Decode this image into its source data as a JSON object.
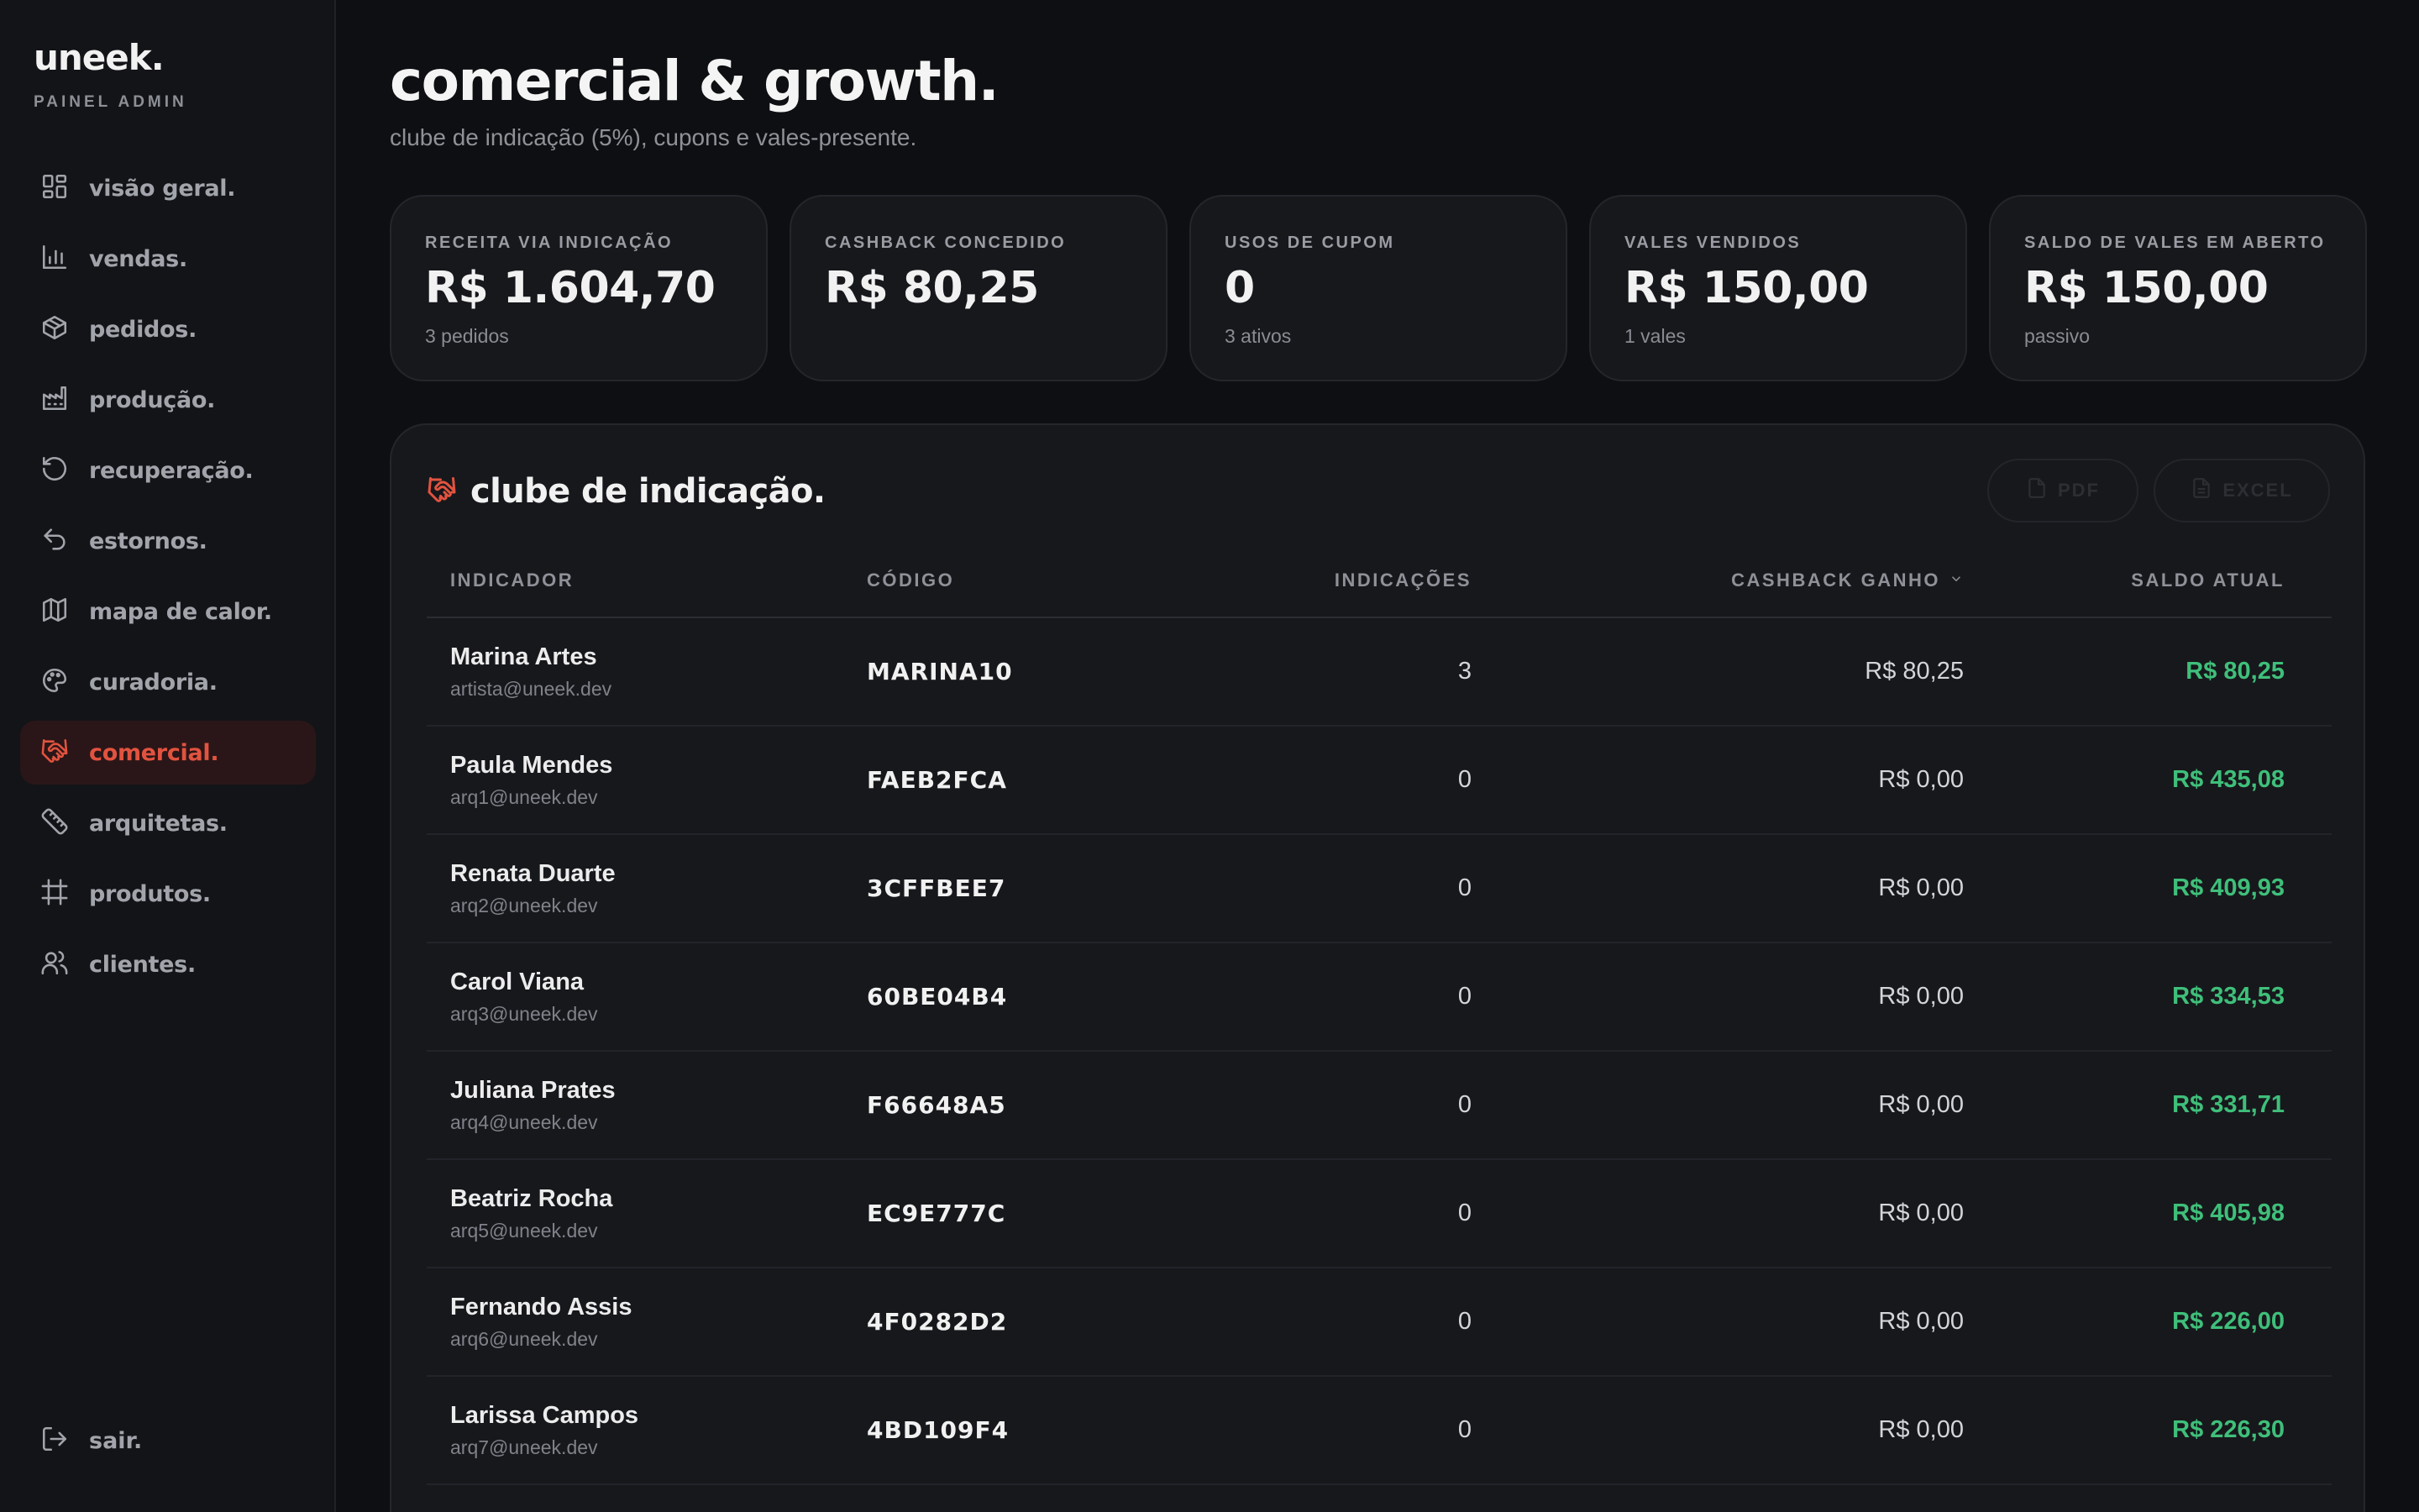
{
  "sidebar": {
    "logo": "uneek.",
    "subtitle": "PAINEL ADMIN",
    "items": [
      {
        "label": "visão geral.",
        "icon": "dashboard-icon"
      },
      {
        "label": "vendas.",
        "icon": "bar-chart-icon"
      },
      {
        "label": "pedidos.",
        "icon": "box-icon"
      },
      {
        "label": "produção.",
        "icon": "factory-icon"
      },
      {
        "label": "recuperação.",
        "icon": "rotate-icon"
      },
      {
        "label": "estornos.",
        "icon": "undo-icon"
      },
      {
        "label": "mapa de calor.",
        "icon": "map-icon"
      },
      {
        "label": "curadoria.",
        "icon": "palette-icon"
      },
      {
        "label": "comercial.",
        "icon": "handshake-icon",
        "active": true
      },
      {
        "label": "arquitetas.",
        "icon": "ruler-icon"
      },
      {
        "label": "produtos.",
        "icon": "grid-icon"
      },
      {
        "label": "clientes.",
        "icon": "users-icon"
      }
    ],
    "logout": "sair."
  },
  "header": {
    "title": "comercial & growth.",
    "subtitle": "clube de indicação (5%), cupons e vales-presente."
  },
  "stats": [
    {
      "label": "RECEITA VIA INDICAÇÃO",
      "value": "R$ 1.604,70",
      "hint": "3 pedidos"
    },
    {
      "label": "CASHBACK CONCEDIDO",
      "value": "R$ 80,25",
      "hint": ""
    },
    {
      "label": "USOS DE CUPOM",
      "value": "0",
      "hint": "3 ativos"
    },
    {
      "label": "VALES VENDIDOS",
      "value": "R$ 150,00",
      "hint": "1 vales"
    },
    {
      "label": "SALDO DE VALES EM ABERTO",
      "value": "R$ 150,00",
      "hint": "passivo"
    }
  ],
  "panel": {
    "title": "clube de indicação.",
    "pdf_label": "PDF",
    "excel_label": "EXCEL",
    "columns": [
      "INDICADOR",
      "CÓDIGO",
      "INDICAÇÕES",
      "CASHBACK GANHO",
      "SALDO ATUAL"
    ],
    "rows": [
      {
        "name": "Marina Artes",
        "email": "artista@uneek.dev",
        "code": "MARINA10",
        "referrals": "3",
        "cashback": "R$ 80,25",
        "balance": "R$ 80,25"
      },
      {
        "name": "Paula Mendes",
        "email": "arq1@uneek.dev",
        "code": "FAEB2FCA",
        "referrals": "0",
        "cashback": "R$ 0,00",
        "balance": "R$ 435,08"
      },
      {
        "name": "Renata Duarte",
        "email": "arq2@uneek.dev",
        "code": "3CFFBEE7",
        "referrals": "0",
        "cashback": "R$ 0,00",
        "balance": "R$ 409,93"
      },
      {
        "name": "Carol Viana",
        "email": "arq3@uneek.dev",
        "code": "60BE04B4",
        "referrals": "0",
        "cashback": "R$ 0,00",
        "balance": "R$ 334,53"
      },
      {
        "name": "Juliana Prates",
        "email": "arq4@uneek.dev",
        "code": "F66648A5",
        "referrals": "0",
        "cashback": "R$ 0,00",
        "balance": "R$ 331,71"
      },
      {
        "name": "Beatriz Rocha",
        "email": "arq5@uneek.dev",
        "code": "EC9E777C",
        "referrals": "0",
        "cashback": "R$ 0,00",
        "balance": "R$ 405,98"
      },
      {
        "name": "Fernando Assis",
        "email": "arq6@uneek.dev",
        "code": "4F0282D2",
        "referrals": "0",
        "cashback": "R$ 0,00",
        "balance": "R$ 226,00"
      },
      {
        "name": "Larissa Campos",
        "email": "arq7@uneek.dev",
        "code": "4BD109F4",
        "referrals": "0",
        "cashback": "R$ 0,00",
        "balance": "R$ 226,30"
      }
    ]
  },
  "colors": {
    "accent": "#e2533f",
    "positive": "#3fbf7a",
    "background": "#0e0f12",
    "card": "#17181c"
  }
}
